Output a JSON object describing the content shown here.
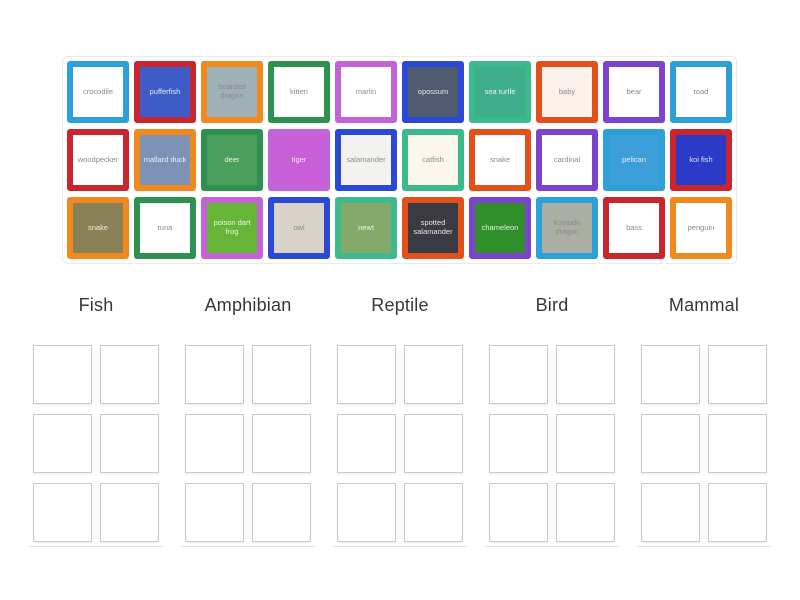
{
  "page": {
    "background": "#ffffff"
  },
  "palette": {
    "lightblue": "#2D9FD9",
    "red": "#C8262E",
    "orange": "#F0891E",
    "green": "#2E9150",
    "orchid": "#C263D8",
    "darkblue": "#2B49D4",
    "teal": "#3CBA8C",
    "vermilion": "#E2511C",
    "purple": "#7B43CE",
    "slot_border": "#C9C9C9",
    "group_underline": "#DEDEDE",
    "label_text": "#383838",
    "tray_border": "#ECE9E9"
  },
  "tray": {
    "tiles": [
      {
        "animal": "crocodile",
        "border_color": "#2D9FD9",
        "bg_color": "#FFFFFF"
      },
      {
        "animal": "pufferfish",
        "border_color": "#C8262E",
        "bg_color": "#3D5CC8"
      },
      {
        "animal": "bearded dragon",
        "border_color": "#F0891E",
        "bg_color": "#9FB0B6"
      },
      {
        "animal": "kitten",
        "border_color": "#2E9150",
        "bg_color": "#FFFFFF"
      },
      {
        "animal": "marlin",
        "border_color": "#C263D8",
        "bg_color": "#FFFFFF"
      },
      {
        "animal": "opossum",
        "border_color": "#2B49D4",
        "bg_color": "#4E5A70"
      },
      {
        "animal": "sea turtle",
        "border_color": "#3CBA8C",
        "bg_color": "#3FAE8C"
      },
      {
        "animal": "baby",
        "border_color": "#E2511C",
        "bg_color": "#FCF1EA"
      },
      {
        "animal": "bear",
        "border_color": "#7B43CE",
        "bg_color": "#FFFFFF"
      },
      {
        "animal": "toad",
        "border_color": "#2D9FD9",
        "bg_color": "#FFFFFF"
      },
      {
        "animal": "woodpecker",
        "border_color": "#C8262E",
        "bg_color": "#FFFFFF"
      },
      {
        "animal": "mallard duck",
        "border_color": "#F0891E",
        "bg_color": "#7C93B5"
      },
      {
        "animal": "deer",
        "border_color": "#2E9150",
        "bg_color": "#4C9E5C"
      },
      {
        "animal": "tiger",
        "border_color": "#C263D8",
        "bg_color": "#C95FD8"
      },
      {
        "animal": "salamander",
        "border_color": "#2B49D4",
        "bg_color": "#F2F2F0"
      },
      {
        "animal": "catfish",
        "border_color": "#3CBA8C",
        "bg_color": "#FBF7EC"
      },
      {
        "animal": "snake",
        "border_color": "#E2511C",
        "bg_color": "#FFFFFF"
      },
      {
        "animal": "cardinal",
        "border_color": "#7B43CE",
        "bg_color": "#FFFFFF"
      },
      {
        "animal": "pelican",
        "border_color": "#2D9FD9",
        "bg_color": "#3D9FD9"
      },
      {
        "animal": "koi fish",
        "border_color": "#C8262E",
        "bg_color": "#2B3BC8"
      },
      {
        "animal": "snake",
        "border_color": "#F0891E",
        "bg_color": "#8A8055"
      },
      {
        "animal": "tuna",
        "border_color": "#2E9150",
        "bg_color": "#FFFFFF"
      },
      {
        "animal": "poison dart frog",
        "border_color": "#C263D8",
        "bg_color": "#67B536"
      },
      {
        "animal": "owl",
        "border_color": "#2B49D4",
        "bg_color": "#D8D2C8"
      },
      {
        "animal": "newt",
        "border_color": "#3CBA8C",
        "bg_color": "#85A86B"
      },
      {
        "animal": "spotted salamander",
        "border_color": "#E2511C",
        "bg_color": "#3A3A42"
      },
      {
        "animal": "chameleon",
        "border_color": "#7B43CE",
        "bg_color": "#2F8F2A"
      },
      {
        "animal": "komodo dragon",
        "border_color": "#2D9FD9",
        "bg_color": "#ABAFA3"
      },
      {
        "animal": "bass",
        "border_color": "#C8262E",
        "bg_color": "#FFFFFF"
      },
      {
        "animal": "penguin",
        "border_color": "#F0891E",
        "bg_color": "#FFFFFF"
      }
    ]
  },
  "slot_grid": {
    "columns": 2,
    "rows": 3,
    "slots_per_group": 6
  },
  "groups": [
    {
      "label": "Fish"
    },
    {
      "label": "Amphibian"
    },
    {
      "label": "Reptile"
    },
    {
      "label": "Bird"
    },
    {
      "label": "Mammal"
    }
  ]
}
